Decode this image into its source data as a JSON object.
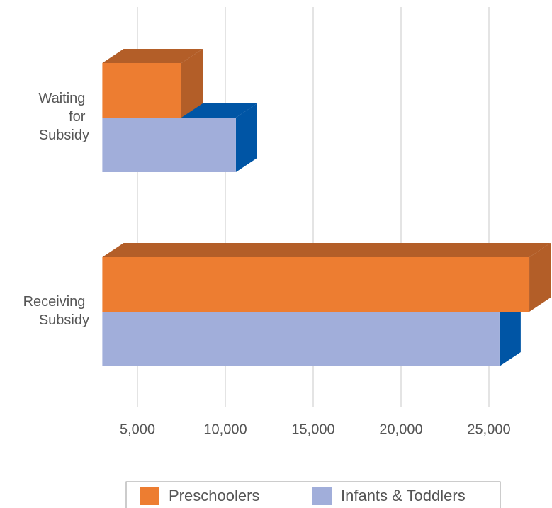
{
  "chart_data": {
    "type": "bar3d_horizontal",
    "categories": [
      "Waiting for Subsidy",
      "Receiving Subsidy"
    ],
    "series": [
      {
        "name": "Preschoolers",
        "color": "#ed7d31",
        "side_color": "#b35e28",
        "values": [
          7500,
          27300
        ]
      },
      {
        "name": "Infants & Toddlers",
        "color": "#a1aeda",
        "side_color": "#0055a5",
        "values": [
          10600,
          25600
        ]
      }
    ],
    "xlim": [
      3000,
      28000
    ],
    "xticks": [
      {
        "value": 5000,
        "label": "5,000"
      },
      {
        "value": 10000,
        "label": "10,000"
      },
      {
        "value": 15000,
        "label": "15,000"
      },
      {
        "value": 20000,
        "label": "20,000"
      },
      {
        "value": 25000,
        "label": "25,000"
      }
    ],
    "grid": true,
    "legend": "bottom"
  }
}
